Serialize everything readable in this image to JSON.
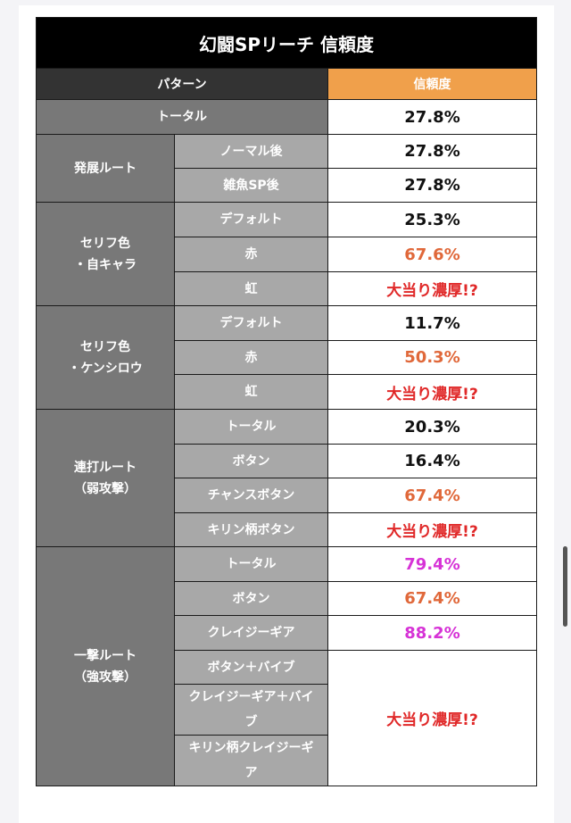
{
  "title": "幻闘SPリーチ 信頼度",
  "header": {
    "pattern": "パターン",
    "reliability": "信頼度"
  },
  "rows": {
    "total": {
      "label": "トータル",
      "value": "27.8%"
    },
    "route": {
      "label": "発展ルート",
      "items": [
        {
          "label": "ノーマル後",
          "value": "27.8%"
        },
        {
          "label": "雑魚SP後",
          "value": "27.8%"
        }
      ]
    },
    "serif_jichara": {
      "label_line1": "セリフ色",
      "label_line2": "・自キャラ",
      "items": [
        {
          "label": "デフォルト",
          "value": "25.3%"
        },
        {
          "label": "赤",
          "value": "67.6%"
        },
        {
          "label": "虹",
          "value": "大当り濃厚!?"
        }
      ]
    },
    "serif_kenshiro": {
      "label_line1": "セリフ色",
      "label_line2": "・ケンシロウ",
      "items": [
        {
          "label": "デフォルト",
          "value": "11.7%"
        },
        {
          "label": "赤",
          "value": "50.3%"
        },
        {
          "label": "虹",
          "value": "大当り濃厚!?"
        }
      ]
    },
    "renda": {
      "label_line1": "連打ルート",
      "label_line2": "（弱攻撃）",
      "items": [
        {
          "label": "トータル",
          "value": "20.3%"
        },
        {
          "label": "ボタン",
          "value": "16.4%"
        },
        {
          "label": "チャンスボタン",
          "value": "67.4%"
        },
        {
          "label": "キリン柄ボタン",
          "value": "大当り濃厚!?"
        }
      ]
    },
    "ichigeki": {
      "label_line1": "一撃ルート",
      "label_line2": "（強攻撃）",
      "items": [
        {
          "label": "トータル",
          "value": "79.4%"
        },
        {
          "label": "ボタン",
          "value": "67.4%"
        },
        {
          "label": "クレイジーギア",
          "value": "88.2%"
        },
        {
          "label": "ボタン＋バイブ"
        },
        {
          "label_line1": "クレイジーギア＋バイ",
          "label_line2": "ブ"
        },
        {
          "label_line1": "キリン柄クレイジーギ",
          "label_line2": "ア"
        }
      ],
      "merged_value": "大当り濃厚!?"
    }
  },
  "colors": {
    "title_bg": "#000000",
    "header_bg": "#333333",
    "header_accent": "#f0a04b",
    "group_bg": "#787878",
    "sub_bg": "#a8a8a8",
    "orange_value": "#e0683a",
    "magenta_value": "#d632d6",
    "red_value": "#e02828"
  }
}
